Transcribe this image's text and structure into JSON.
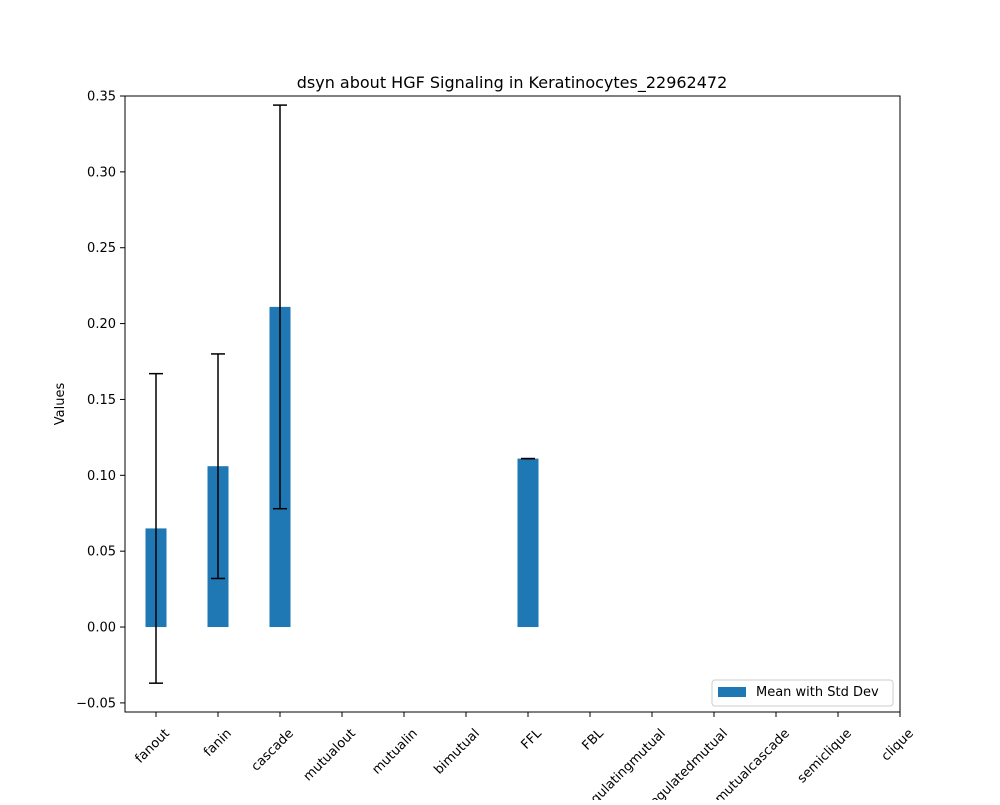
{
  "chart_data": {
    "type": "bar",
    "title": "dsyn about HGF Signaling in Keratinocytes_22962472",
    "xlabel": "",
    "ylabel": "Values",
    "categories": [
      "fanout",
      "fanin",
      "cascade",
      "mutualout",
      "mutualin",
      "bimutual",
      "FFL",
      "FBL",
      "regulatingmutual",
      "regulatedmutual",
      "mutualcascade",
      "semiclique",
      "clique"
    ],
    "series": [
      {
        "name": "Mean with Std Dev",
        "values": [
          0.065,
          0.106,
          0.211,
          null,
          null,
          null,
          0.111,
          null,
          null,
          null,
          null,
          null,
          null
        ],
        "std": [
          0.102,
          0.074,
          0.133,
          null,
          null,
          null,
          0.0,
          null,
          null,
          null,
          null,
          null,
          null
        ],
        "color": "#1f77b4"
      }
    ],
    "ylim": [
      -0.056,
      0.35
    ],
    "yticks": [
      -0.05,
      0.0,
      0.05,
      0.1,
      0.15,
      0.2,
      0.25,
      0.3,
      0.35
    ],
    "ytick_labels": [
      "−0.05",
      "0.00",
      "0.05",
      "0.10",
      "0.15",
      "0.20",
      "0.25",
      "0.30",
      "0.35"
    ],
    "grid": false,
    "legend_position": "lower-right"
  }
}
